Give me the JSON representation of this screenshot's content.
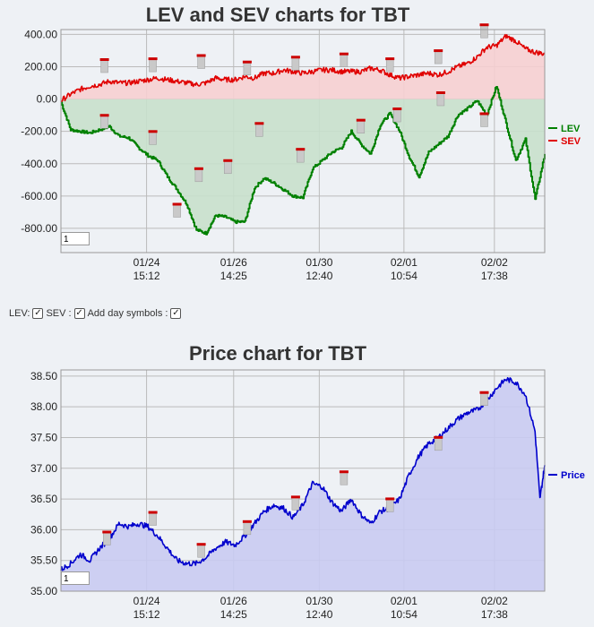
{
  "charts": {
    "lev_sev": {
      "title": "LEV and SEV charts for TBT",
      "zoom_value": "1"
    },
    "price": {
      "title": "Price chart for TBT",
      "zoom_value": "1"
    }
  },
  "controls": {
    "lev_label": "LEV:",
    "sev_label": "SEV :",
    "day_symbols_label": "Add day symbols :"
  },
  "colors": {
    "lev": "#008000",
    "sev": "#e00000",
    "price": "#0000cc",
    "lev_fill": "#c8e0cc",
    "sev_fill": "#f6cfd2",
    "price_fill": "#c9cbf2",
    "marker": "#cc0000",
    "background": "#eef1f5"
  },
  "chart_data": [
    {
      "type": "line",
      "title": "LEV and SEV charts for TBT",
      "ylim": [
        -950,
        430
      ],
      "yticks": [
        "400.00",
        "200.00",
        "0.00",
        "-200.00",
        "-400.00",
        "-600.00",
        "-800.00"
      ],
      "xticks": [
        [
          "01/24",
          "15:12"
        ],
        [
          "01/26",
          "14:25"
        ],
        [
          "01/30",
          "12:40"
        ],
        [
          "02/01",
          "10:54"
        ],
        [
          "02/02",
          "17:38"
        ]
      ],
      "legend": "right",
      "grid": true,
      "series": [
        {
          "name": "LEV",
          "x": [
            0,
            2,
            4,
            6,
            8,
            10,
            12,
            14,
            16,
            18,
            20,
            22,
            24,
            26,
            28,
            30,
            32,
            34,
            36,
            38,
            40,
            42,
            44,
            46,
            48,
            50,
            52,
            54,
            56,
            58,
            60,
            62,
            64,
            66,
            68,
            70,
            72,
            74,
            76,
            78,
            80,
            82,
            84,
            86,
            88,
            90,
            92,
            94,
            96,
            98,
            100
          ],
          "values": [
            -20,
            -190,
            -200,
            -210,
            -190,
            -170,
            -230,
            -240,
            -300,
            -350,
            -380,
            -480,
            -560,
            -650,
            -810,
            -830,
            -720,
            -730,
            -760,
            -760,
            -550,
            -490,
            -520,
            -560,
            -600,
            -610,
            -430,
            -380,
            -330,
            -300,
            -200,
            -280,
            -340,
            -160,
            -90,
            -200,
            -360,
            -480,
            -330,
            -280,
            -230,
            -100,
            -60,
            -10,
            -100,
            80,
            -150,
            -380,
            -250,
            -620,
            -340
          ]
        },
        {
          "name": "SEV",
          "x": [
            0,
            2,
            4,
            6,
            8,
            10,
            12,
            14,
            16,
            18,
            20,
            22,
            24,
            26,
            28,
            30,
            32,
            34,
            36,
            38,
            40,
            42,
            44,
            46,
            48,
            50,
            52,
            54,
            56,
            58,
            60,
            62,
            64,
            66,
            68,
            70,
            72,
            74,
            76,
            78,
            80,
            82,
            84,
            86,
            88,
            90,
            92,
            94,
            96,
            98,
            100
          ],
          "values": [
            -10,
            30,
            60,
            80,
            90,
            110,
            100,
            100,
            110,
            120,
            130,
            120,
            110,
            100,
            90,
            100,
            130,
            120,
            120,
            140,
            130,
            160,
            160,
            180,
            170,
            160,
            170,
            180,
            180,
            170,
            170,
            170,
            190,
            180,
            150,
            130,
            140,
            150,
            160,
            150,
            170,
            200,
            220,
            260,
            320,
            330,
            390,
            360,
            310,
            290,
            280
          ]
        }
      ],
      "markers": [
        {
          "label": "LEV",
          "x": [
            9,
            19,
            24,
            28.5,
            34.5,
            41,
            49.5,
            62,
            69.5,
            78.5,
            87.5
          ],
          "values": [
            -170,
            -270,
            -720,
            -500,
            -450,
            -220,
            -380,
            -200,
            -130,
            -30,
            -160
          ]
        },
        {
          "label": "SEV",
          "x": [
            9,
            19,
            29,
            38.5,
            48.5,
            58.5,
            68,
            78,
            87.5
          ],
          "values": [
            175,
            180,
            200,
            160,
            190,
            210,
            180,
            230,
            390
          ]
        }
      ]
    },
    {
      "type": "area",
      "title": "Price chart for TBT",
      "ylim": [
        35.0,
        38.6
      ],
      "yticks": [
        "38.50",
        "38.00",
        "37.50",
        "37.00",
        "36.50",
        "36.00",
        "35.50",
        "35.00"
      ],
      "xticks": [
        [
          "01/24",
          "15:12"
        ],
        [
          "01/26",
          "14:25"
        ],
        [
          "01/30",
          "12:40"
        ],
        [
          "02/01",
          "10:54"
        ],
        [
          "02/02",
          "17:38"
        ]
      ],
      "legend": "right",
      "grid": true,
      "series": [
        {
          "name": "Price",
          "x": [
            0,
            2,
            4,
            6,
            8,
            10,
            12,
            14,
            16,
            18,
            20,
            22,
            24,
            26,
            28,
            30,
            32,
            34,
            36,
            38,
            40,
            42,
            44,
            46,
            48,
            50,
            52,
            54,
            56,
            58,
            60,
            62,
            64,
            66,
            68,
            70,
            72,
            74,
            76,
            78,
            80,
            82,
            84,
            86,
            88,
            90,
            92,
            94,
            96,
            98,
            99,
            100
          ],
          "values": [
            35.35,
            35.45,
            35.6,
            35.5,
            35.7,
            35.85,
            36.1,
            36.05,
            36.1,
            36.05,
            35.9,
            35.7,
            35.5,
            35.45,
            35.45,
            35.55,
            35.7,
            35.8,
            35.75,
            35.9,
            36.1,
            36.3,
            36.4,
            36.35,
            36.2,
            36.4,
            36.75,
            36.7,
            36.45,
            36.3,
            36.5,
            36.25,
            36.1,
            36.3,
            36.35,
            36.5,
            36.9,
            37.2,
            37.4,
            37.5,
            37.65,
            37.8,
            37.9,
            37.95,
            38.1,
            38.3,
            38.45,
            38.4,
            38.2,
            37.6,
            36.5,
            37.05
          ]
        }
      ],
      "markers": [
        {
          "label": "Price",
          "x": [
            9.5,
            19,
            29,
            38.5,
            48.5,
            58.5,
            68,
            78,
            87.5
          ],
          "values": [
            35.78,
            36.1,
            35.58,
            35.95,
            36.35,
            36.76,
            36.32,
            37.32,
            38.05
          ]
        }
      ]
    }
  ]
}
